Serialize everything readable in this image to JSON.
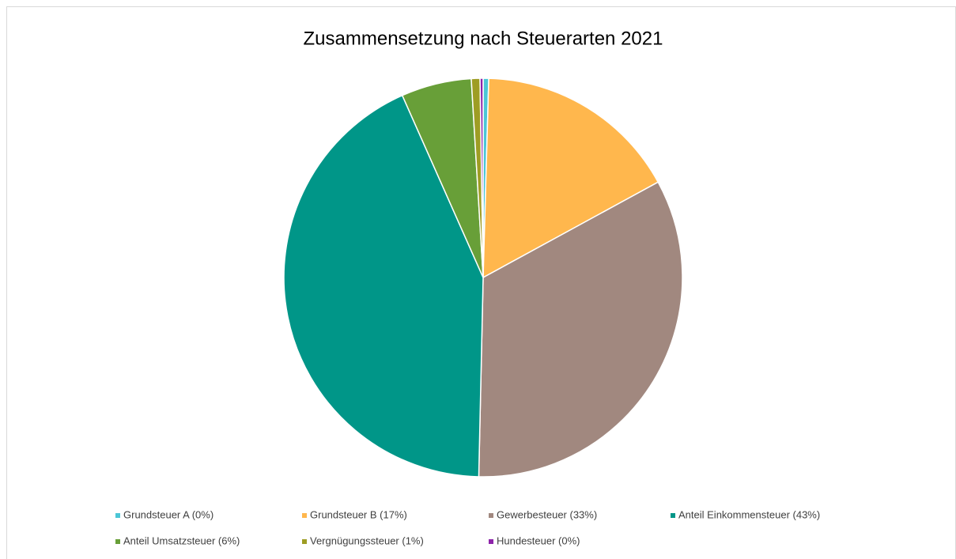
{
  "chart_data": {
    "type": "pie",
    "title": "Zusammensetzung nach Steuerarten 2021",
    "categories": [
      "Grundsteuer A (0%)",
      "Grundsteuer B (17%)",
      "Gewerbesteuer (33%)",
      "Anteil Einkommensteuer (43%)",
      "Anteil Umsatzsteuer (6%)",
      "Vergnügungssteuer (1%)",
      "Hundesteuer (0%)"
    ],
    "values": [
      0.45,
      16.6,
      33.3,
      43.0,
      5.7,
      0.7,
      0.25
    ],
    "colors": [
      "#4bc6d6",
      "#ffb74d",
      "#a1887f",
      "#009688",
      "#689f38",
      "#9e9d24",
      "#8e24aa"
    ],
    "legend": "bottom"
  }
}
